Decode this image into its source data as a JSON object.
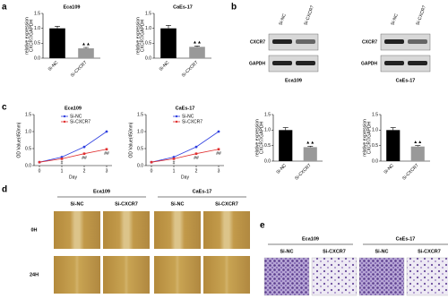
{
  "panel_labels": [
    "a",
    "b",
    "c",
    "d",
    "e"
  ],
  "chart_data": [
    {
      "type": "bar",
      "title": "Eca109",
      "y_label": [
        "relative expression",
        "CXCR7/GAPDH"
      ],
      "categories": [
        "Si-NC",
        "Si-CXCR7"
      ],
      "values": [
        1.0,
        0.33
      ],
      "errors": [
        0.07,
        0.03
      ],
      "annotation": "▲▲",
      "colors": [
        "#000000",
        "#999999"
      ],
      "ylim": [
        0,
        1.5
      ],
      "yticks": [
        {
          "value": 0,
          "label": "0.0"
        },
        0.5,
        {
          "value": 1,
          "label": "1.0"
        },
        1.5
      ]
    },
    {
      "type": "bar",
      "title": "CaEs-17",
      "y_label": [
        "relative expression",
        "CXCR7/GAPDH"
      ],
      "categories": [
        "Si-NC",
        "Si-CXCR7"
      ],
      "values": [
        1.0,
        0.38
      ],
      "errors": [
        0.1,
        0.03
      ],
      "annotation": "▲▲",
      "colors": [
        "#000000",
        "#999999"
      ],
      "ylim": [
        0,
        1.5
      ],
      "yticks": [
        {
          "value": 0,
          "label": "0.0"
        },
        0.5,
        {
          "value": 1,
          "label": "1.0"
        },
        1.5
      ]
    },
    {
      "type": "line",
      "title": "Eca109",
      "x_label": "Day",
      "y_label": "OD Value(450nm)",
      "x": [
        0,
        1,
        2,
        3
      ],
      "series": [
        {
          "name": "Si-NC",
          "color": "#2f3fe0",
          "values": [
            0.1,
            0.25,
            0.55,
            1.0
          ]
        },
        {
          "name": "Si-CXCR7",
          "color": "#e02f2f",
          "values": [
            0.1,
            0.2,
            0.35,
            0.48
          ]
        }
      ],
      "annotations": [
        null,
        "#",
        "##",
        "##"
      ],
      "xlim": [
        0,
        3
      ],
      "ylim": [
        0,
        1.5
      ],
      "xticks": [
        0,
        1,
        2,
        3
      ],
      "yticks": [
        {
          "value": 0,
          "label": "0.0"
        },
        0.5,
        {
          "value": 1,
          "label": "1.0"
        },
        1.5
      ]
    },
    {
      "type": "line",
      "title": "CaEs-17",
      "x_label": "Day",
      "y_label": "OD Value(450nm)",
      "x": [
        0,
        1,
        2,
        3
      ],
      "series": [
        {
          "name": "Si-NC",
          "color": "#2f3fe0",
          "values": [
            0.1,
            0.25,
            0.55,
            1.0
          ]
        },
        {
          "name": "Si-CXCR7",
          "color": "#e02f2f",
          "values": [
            0.1,
            0.2,
            0.35,
            0.48
          ]
        }
      ],
      "annotations": [
        null,
        "#",
        "##",
        "##"
      ],
      "xlim": [
        0,
        3
      ],
      "ylim": [
        0,
        1.5
      ],
      "xticks": [
        0,
        1,
        2,
        3
      ],
      "yticks": [
        {
          "value": 0,
          "label": "0.0"
        },
        0.5,
        {
          "value": 1,
          "label": "1.0"
        },
        1.5
      ]
    },
    {
      "type": "bar",
      "y_label": [
        "relative expression",
        "CXCR7/GAPDH"
      ],
      "categories": [
        "Si-NC",
        "Si-CXCR7"
      ],
      "values": [
        1.0,
        0.45
      ],
      "errors": [
        0.08,
        0.03
      ],
      "annotation": "▲▲",
      "colors": [
        "#000000",
        "#999999"
      ],
      "ylim": [
        0,
        1.5
      ],
      "yticks": [
        {
          "value": 0,
          "label": "0.0"
        },
        0.5,
        {
          "value": 1,
          "label": "1.0"
        },
        1.5
      ]
    },
    {
      "type": "bar",
      "y_label": [
        "relative expression",
        "CXCR7/GAPDH"
      ],
      "categories": [
        "Si-NC",
        "Si-CXCR7"
      ],
      "values": [
        1.0,
        0.47
      ],
      "errors": [
        0.08,
        0.03
      ],
      "annotation": "▲▲",
      "colors": [
        "#000000",
        "#999999"
      ],
      "ylim": [
        0,
        1.5
      ],
      "yticks": [
        {
          "value": 0,
          "label": "0.0"
        },
        0.5,
        {
          "value": 1,
          "label": "1.0"
        },
        1.5
      ]
    }
  ],
  "blot": {
    "cell_lines": [
      "Eca109",
      "CaEs-17"
    ],
    "lanes": [
      "Si-NC",
      "Si-CXCR7"
    ],
    "proteins": [
      "CXCR7",
      "GAPDH"
    ]
  },
  "scratch": {
    "cell_lines": [
      "Eca109",
      "CaEs-17"
    ],
    "groups": [
      "Si-NC",
      "Si-CXCR7"
    ],
    "times": [
      "0H",
      "24H"
    ]
  },
  "transwell": {
    "cell_lines": [
      "Eca109",
      "CaEs-17"
    ],
    "groups": [
      "Si-NC",
      "Si-CXCR7"
    ]
  }
}
